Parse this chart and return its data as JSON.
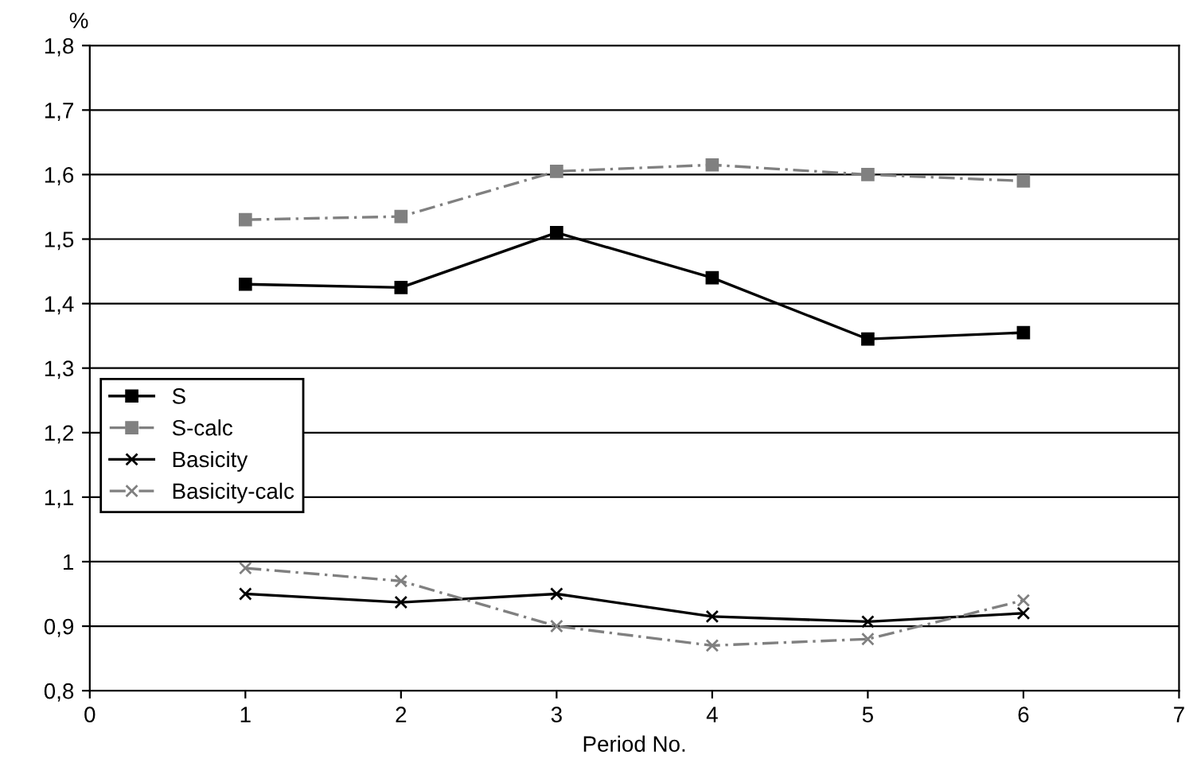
{
  "chart_data": {
    "type": "line",
    "xlabel": "Period No.",
    "ylabel": "%",
    "x": [
      1,
      2,
      3,
      4,
      5,
      6
    ],
    "series": [
      {
        "name": "S",
        "color": "#000000",
        "values": [
          1.43,
          1.425,
          1.51,
          1.44,
          1.345,
          1.355
        ],
        "marker": "square",
        "line_style": "solid"
      },
      {
        "name": "S-calc",
        "color": "#808080",
        "values": [
          1.53,
          1.535,
          1.605,
          1.615,
          1.6,
          1.59
        ],
        "marker": "square",
        "line_style": "dashed"
      },
      {
        "name": "Basicity",
        "color": "#000000",
        "values": [
          0.95,
          0.937,
          0.95,
          0.915,
          0.907,
          0.92
        ],
        "marker": "cross",
        "line_style": "solid"
      },
      {
        "name": "Basicity-calc",
        "color": "#808080",
        "values": [
          0.99,
          0.97,
          0.9,
          0.87,
          0.88,
          0.94
        ],
        "marker": "cross",
        "line_style": "dashed"
      }
    ],
    "xlim": [
      0,
      7
    ],
    "xticks": [
      0,
      1,
      2,
      3,
      4,
      5,
      6,
      7
    ],
    "ylim": [
      0.8,
      1.8
    ],
    "yticks": [
      {
        "value": 0.8,
        "label": "0,8"
      },
      {
        "value": 0.9,
        "label": "0,9"
      },
      {
        "value": 1,
        "label": "1"
      },
      {
        "value": 1.1,
        "label": "1,1"
      },
      {
        "value": 1.2,
        "label": "1,2"
      },
      {
        "value": 1.3,
        "label": "1,3"
      },
      {
        "value": 1.4,
        "label": "1,4"
      },
      {
        "value": 1.5,
        "label": "1,5"
      },
      {
        "value": 1.6,
        "label": "1,6"
      },
      {
        "value": 1.7,
        "label": "1,7"
      },
      {
        "value": 1.8,
        "label": "1,8"
      }
    ],
    "grid": "y",
    "legend": "left"
  }
}
